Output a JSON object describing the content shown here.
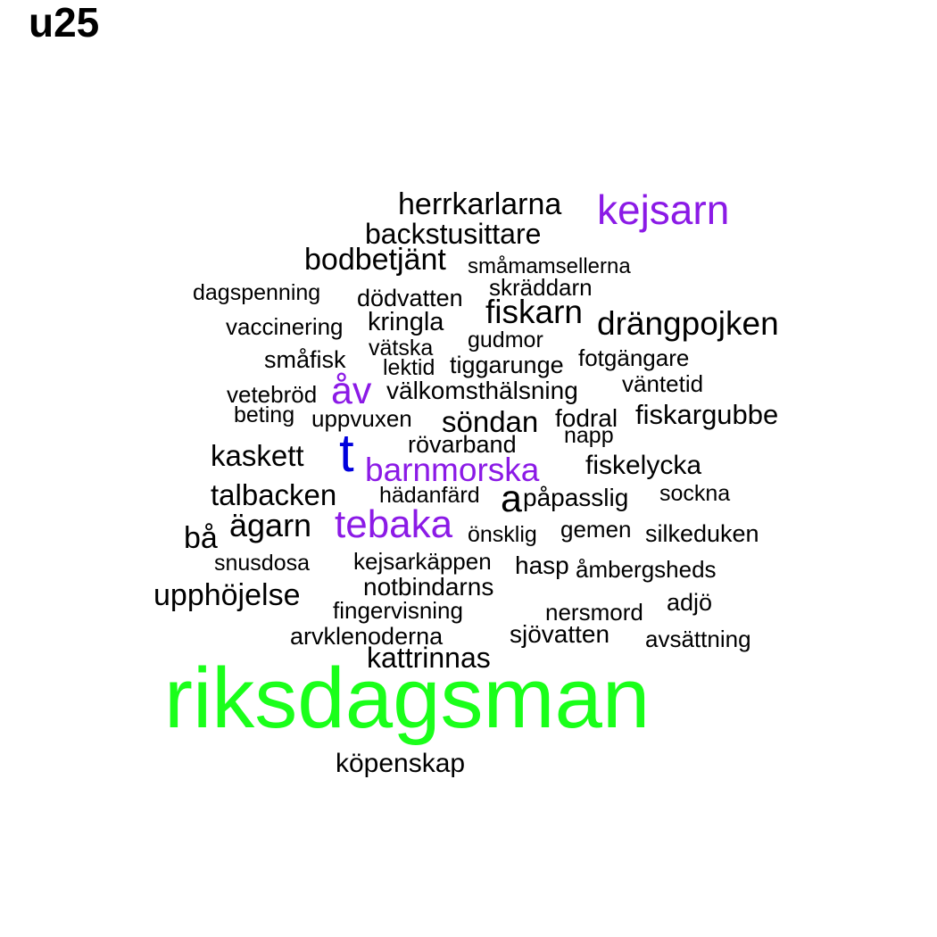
{
  "title": "u25",
  "colors": {
    "black": "#000000",
    "purple": "#8b1ae6",
    "blue": "#0000dd",
    "green": "#1aff1a"
  },
  "words": [
    {
      "text": "herrkarlarna",
      "color": "black"
    },
    {
      "text": "kejsarn",
      "color": "purple"
    },
    {
      "text": "backstusittare",
      "color": "black"
    },
    {
      "text": "bodbetjänt",
      "color": "black"
    },
    {
      "text": "småmamsellerna",
      "color": "black"
    },
    {
      "text": "skräddarn",
      "color": "black"
    },
    {
      "text": "dagspenning",
      "color": "black"
    },
    {
      "text": "dödvatten",
      "color": "black"
    },
    {
      "text": "fiskarn",
      "color": "black"
    },
    {
      "text": "drängpojken",
      "color": "black"
    },
    {
      "text": "vaccinering",
      "color": "black"
    },
    {
      "text": "kringla",
      "color": "black"
    },
    {
      "text": "gudmor",
      "color": "black"
    },
    {
      "text": "vätska",
      "color": "black"
    },
    {
      "text": "småfisk",
      "color": "black"
    },
    {
      "text": "lektid",
      "color": "black"
    },
    {
      "text": "tiggarunge",
      "color": "black"
    },
    {
      "text": "fotgängare",
      "color": "black"
    },
    {
      "text": "väntetid",
      "color": "black"
    },
    {
      "text": "vetebröd",
      "color": "black"
    },
    {
      "text": "åv",
      "color": "purple"
    },
    {
      "text": "välkomsthälsning",
      "color": "black"
    },
    {
      "text": "beting",
      "color": "black"
    },
    {
      "text": "uppvuxen",
      "color": "black"
    },
    {
      "text": "söndan",
      "color": "black"
    },
    {
      "text": "fodral",
      "color": "black"
    },
    {
      "text": "fiskargubbe",
      "color": "black"
    },
    {
      "text": "napp",
      "color": "black"
    },
    {
      "text": "rövarband",
      "color": "black"
    },
    {
      "text": "kaskett",
      "color": "black"
    },
    {
      "text": "t",
      "color": "blue"
    },
    {
      "text": "barnmorska",
      "color": "purple"
    },
    {
      "text": "fiskelycka",
      "color": "black"
    },
    {
      "text": "talbacken",
      "color": "black"
    },
    {
      "text": "hädanfärd",
      "color": "black"
    },
    {
      "text": "a",
      "color": "black"
    },
    {
      "text": "påpasslig",
      "color": "black"
    },
    {
      "text": "sockna",
      "color": "black"
    },
    {
      "text": "ägarn",
      "color": "black"
    },
    {
      "text": "tebaka",
      "color": "purple"
    },
    {
      "text": "bå",
      "color": "black"
    },
    {
      "text": "önsklig",
      "color": "black"
    },
    {
      "text": "gemen",
      "color": "black"
    },
    {
      "text": "silkeduken",
      "color": "black"
    },
    {
      "text": "snusdosa",
      "color": "black"
    },
    {
      "text": "kejsarkäppen",
      "color": "black"
    },
    {
      "text": "hasp",
      "color": "black"
    },
    {
      "text": "åmbergsheds",
      "color": "black"
    },
    {
      "text": "upphöjelse",
      "color": "black"
    },
    {
      "text": "notbindarns",
      "color": "black"
    },
    {
      "text": "fingervisning",
      "color": "black"
    },
    {
      "text": "nersmord",
      "color": "black"
    },
    {
      "text": "adjö",
      "color": "black"
    },
    {
      "text": "arvklenoderna",
      "color": "black"
    },
    {
      "text": "sjövatten",
      "color": "black"
    },
    {
      "text": "avsättning",
      "color": "black"
    },
    {
      "text": "kattrinnas",
      "color": "black"
    },
    {
      "text": "riksdagsman",
      "color": "green"
    },
    {
      "text": "köpenskap",
      "color": "black"
    }
  ]
}
